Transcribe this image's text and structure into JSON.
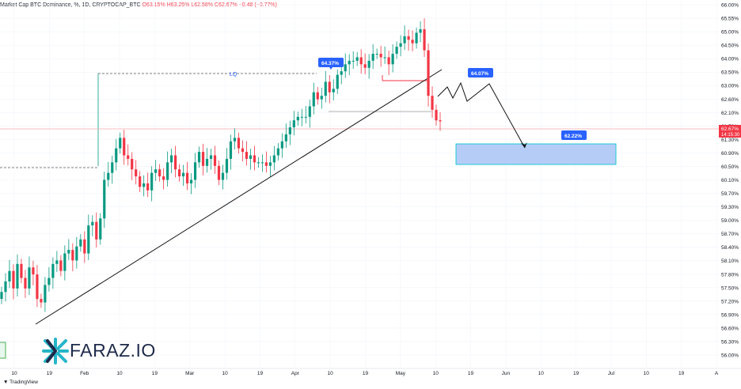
{
  "header": {
    "symbol_line": "Market Cap BTC Dominance, %, 1D, CRYPTOCAP_BTC",
    "ohlc_line": "O63.15% H63.25% L62.58% C62.67% −0.48 (−0.77%)"
  },
  "price_axis": {
    "ticks": [
      "66.00%",
      "65.55%",
      "65.00%",
      "64.50%",
      "64.00%",
      "63.50%",
      "63.00%",
      "62.60%",
      "62.10%",
      "61.70%",
      "61.30%",
      "60.90%",
      "60.50%",
      "60.10%",
      "59.70%",
      "59.30%",
      "59.00%",
      "58.70%",
      "58.40%",
      "58.10%",
      "57.80%",
      "57.50%",
      "57.20%",
      "56.90%",
      "56.60%",
      "56.30%",
      "56.00%"
    ],
    "current_price_label": "62.67%",
    "countdown_label": "14:15:30"
  },
  "time_axis": {
    "ticks": [
      "10",
      "19",
      "Feb",
      "10",
      "19",
      "Mar",
      "10",
      "19",
      "Apr",
      "10",
      "19",
      "May",
      "10",
      "19",
      "Jun",
      "10",
      "19",
      "Jul",
      "10",
      "19",
      "A"
    ]
  },
  "annotations": {
    "lq_label": "LQ",
    "lq_price_label": "64.37%",
    "projection_high_label": "64.07%",
    "target_zone_label": "62.22%"
  },
  "footer": {
    "brand": "FARAZ.IO",
    "tradingview": "TradingView"
  },
  "colors": {
    "up": "#089981",
    "down": "#f23645",
    "target_zone_fill": "#a8c4f5",
    "target_zone_border": "#1ec8d8",
    "label_bg": "#2962ff",
    "logo_accent": "#26b5c9"
  },
  "chart_data": {
    "type": "candlestick",
    "title": "Market Cap BTC Dominance, %, 1D, CRYPTOCAP_BTC",
    "ylim": [
      56.0,
      66.0
    ],
    "current_price": 62.67,
    "x_period": "daily, ~Jan 10 – early Aug",
    "ohlc_close_path": [
      57.8,
      58.1,
      58.4,
      57.9,
      58.6,
      58.2,
      57.9,
      58.5,
      58.3,
      57.6,
      57.5,
      58.0,
      58.2,
      58.6,
      58.7,
      58.4,
      58.9,
      59.0,
      58.7,
      59.1,
      59.3,
      58.9,
      59.7,
      59.8,
      59.3,
      59.9,
      61.0,
      61.2,
      61.5,
      61.9,
      62.2,
      61.7,
      61.6,
      61.3,
      61.1,
      60.8,
      60.9,
      60.7,
      61.2,
      61.3,
      61.1,
      61.0,
      61.5,
      61.7,
      61.3,
      61.1,
      61.2,
      60.9,
      61.0,
      61.5,
      61.8,
      61.4,
      61.6,
      61.7,
      61.4,
      61.0,
      61.2,
      61.6,
      62.1,
      62.2,
      61.9,
      61.8,
      61.6,
      61.7,
      61.5,
      61.5,
      61.5,
      61.4,
      61.5,
      61.7,
      61.9,
      62.1,
      62.3,
      62.5,
      62.7,
      62.8,
      62.8,
      62.8,
      63.1,
      63.5,
      63.3,
      63.4,
      63.8,
      63.5,
      63.6,
      64.0,
      64.1,
      64.3,
      64.4,
      64.4,
      64.5,
      64.3,
      64.2,
      64.4,
      64.6,
      64.6,
      64.5,
      64.5,
      64.3,
      64.6,
      64.8,
      64.9,
      65.1,
      65.0,
      64.9,
      65.2,
      65.3,
      64.7,
      63.4,
      63.0,
      62.7,
      62.67
    ]
  }
}
